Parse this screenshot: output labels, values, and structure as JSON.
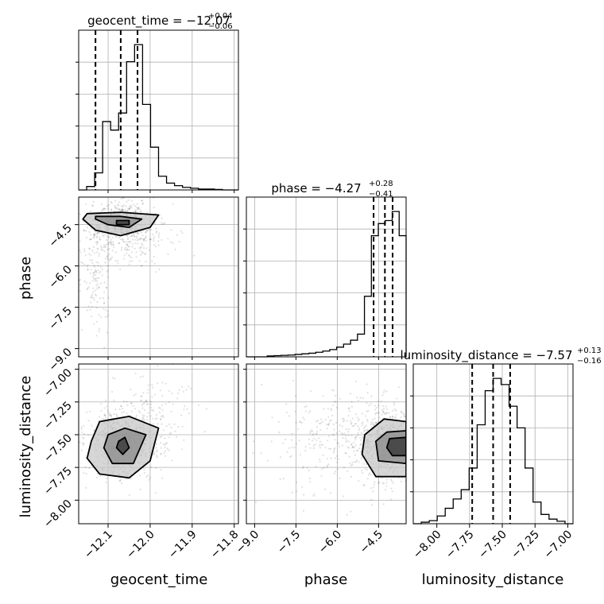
{
  "chart_data": {
    "type": "corner",
    "parameters": [
      "geocent_time",
      "phase",
      "luminosity_distance"
    ],
    "titles": [
      {
        "prefix": "geocent_time = ",
        "median": "−12.07",
        "plus": "+0.04",
        "minus": "−0.06"
      },
      {
        "prefix": "phase = ",
        "median": "−4.27",
        "plus": "+0.28",
        "minus": "−0.41"
      },
      {
        "prefix": "luminosity_distance = ",
        "median": "−7.57",
        "plus": "+0.13",
        "minus": "−0.16"
      }
    ],
    "ranges": [
      [
        -12.17,
        -11.79
      ],
      [
        -9.3,
        -3.5
      ],
      [
        -8.18,
        -6.96
      ]
    ],
    "ticks": {
      "geocent_time": {
        "values": [
          -12.1,
          -12.0,
          -11.9,
          -11.8
        ],
        "labels": [
          "−12.1",
          "−12.0",
          "−11.9",
          "−11.8"
        ]
      },
      "phase": {
        "values": [
          -9.0,
          -7.5,
          -6.0,
          -4.5
        ],
        "labels": [
          "−9.0",
          "−7.5",
          "−6.0",
          "−4.5"
        ]
      },
      "luminosity_distance": {
        "values": [
          -8.0,
          -7.75,
          -7.5,
          -7.25,
          -7.0
        ],
        "labels": [
          "−8.00",
          "−7.75",
          "−7.50",
          "−7.25",
          "−7.00"
        ]
      }
    },
    "quantiles": {
      "geocent_time": [
        -12.13,
        -12.07,
        -12.03
      ],
      "phase": [
        -4.68,
        -4.27,
        -3.99
      ],
      "luminosity_distance": [
        -7.73,
        -7.57,
        -7.44
      ]
    },
    "histograms": {
      "geocent_time": {
        "range": [
          -12.17,
          -11.79
        ],
        "counts": [
          0,
          2,
          10,
          40,
          35,
          45,
          75,
          85,
          50,
          25,
          8,
          4,
          2.5,
          1.5,
          1,
          0.5,
          0.5,
          0.3,
          0,
          0
        ]
      },
      "phase": {
        "range": [
          -9.3,
          -3.5
        ],
        "counts": [
          0,
          0,
          0,
          0.3,
          0.4,
          0.5,
          0.6,
          0.8,
          1,
          1.2,
          1.5,
          1.9,
          2.4,
          3.2,
          4.2,
          5.5,
          7.5,
          20,
          40,
          44,
          45,
          48,
          40
        ]
      },
      "luminosity_distance": {
        "range": [
          -8.18,
          -6.96
        ],
        "counts": [
          0,
          0.5,
          1,
          2.5,
          5,
          8,
          11,
          18,
          32,
          43,
          47,
          45,
          38,
          31,
          18,
          7,
          3,
          1.5,
          0.8,
          0
        ]
      }
    },
    "grid": true,
    "legend": "none"
  }
}
